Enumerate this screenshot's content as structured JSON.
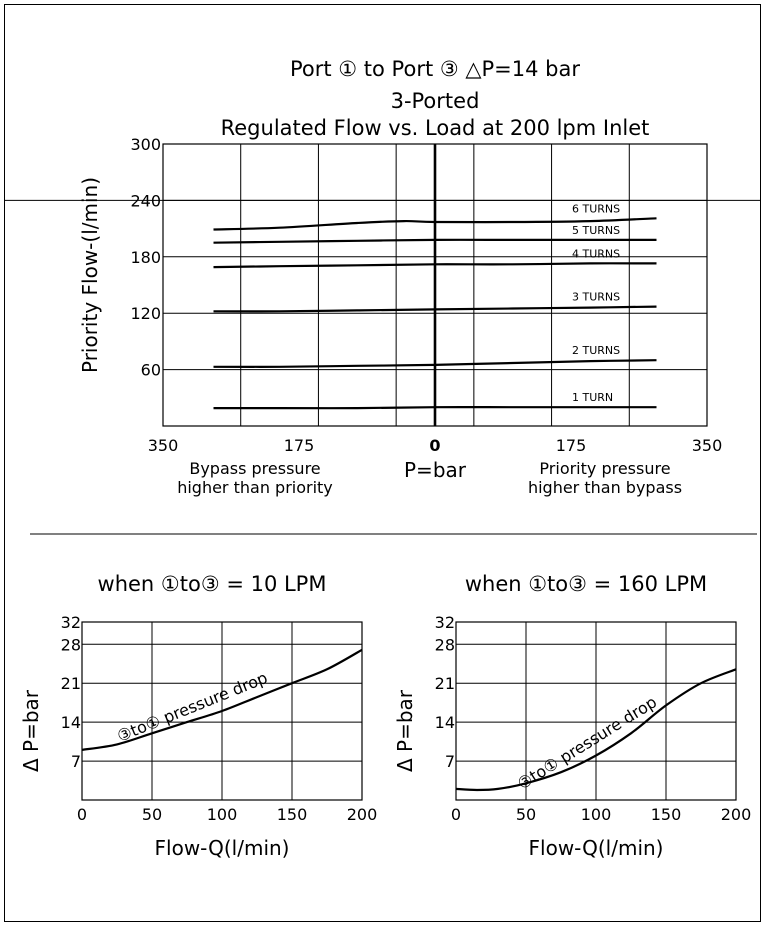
{
  "chart_data": [
    {
      "type": "line",
      "title_lines": [
        "Port ① to Port ③ △P=14 bar",
        "3-Ported",
        "Regulated Flow vs. Load at 200 lpm Inlet"
      ],
      "ylabel": "Priority Flow-(l/min)",
      "xlabel": "P=bar",
      "x_tick_labels": [
        "350",
        "175",
        "0",
        "175",
        "350"
      ],
      "y_tick_labels": [
        "60",
        "120",
        "180",
        "240",
        "300"
      ],
      "xlim": [
        -350,
        350
      ],
      "ylim": [
        0,
        300
      ],
      "left_note": [
        "Bypass pressure",
        "higher than priority"
      ],
      "right_note": [
        "Priority pressure",
        "higher than bypass"
      ],
      "series": [
        {
          "name": "1 TURN",
          "x": [
            -285,
            -200,
            -100,
            0,
            100,
            200,
            285
          ],
          "y": [
            19,
            19,
            19,
            20,
            20,
            20,
            20
          ]
        },
        {
          "name": "2 TURNS",
          "x": [
            -285,
            -200,
            -100,
            0,
            100,
            200,
            285
          ],
          "y": [
            63,
            63,
            64,
            65,
            67,
            69,
            70
          ]
        },
        {
          "name": "3 TURNS",
          "x": [
            -285,
            -200,
            -100,
            0,
            100,
            200,
            285
          ],
          "y": [
            122,
            122,
            123,
            124,
            125,
            126,
            127
          ]
        },
        {
          "name": "4 TURNS",
          "x": [
            -285,
            -200,
            -100,
            0,
            100,
            200,
            285
          ],
          "y": [
            169,
            170,
            171,
            172,
            172,
            173,
            173
          ]
        },
        {
          "name": "5 TURNS",
          "x": [
            -285,
            -200,
            -100,
            0,
            100,
            200,
            285
          ],
          "y": [
            195,
            196,
            197,
            198,
            198,
            198,
            198
          ]
        },
        {
          "name": "6 TURNS",
          "x": [
            -285,
            -200,
            -100,
            -40,
            0,
            100,
            200,
            285
          ],
          "y": [
            209,
            211,
            216,
            218,
            217,
            217,
            218,
            221
          ]
        }
      ]
    },
    {
      "type": "line",
      "title": "when ①to③ = 10 LPM",
      "xlabel": "Flow-Q(l/min)",
      "ylabel": "Δ P=bar",
      "x_tick_labels": [
        "0",
        "50",
        "100",
        "150",
        "200"
      ],
      "y_tick_labels": [
        "7",
        "14",
        "21",
        "28",
        "32"
      ],
      "xlim": [
        0,
        200
      ],
      "ylim": [
        0,
        32
      ],
      "annotation": "③to① pressure drop",
      "series": [
        {
          "name": "③to① pressure drop",
          "x": [
            0,
            25,
            50,
            75,
            100,
            125,
            150,
            175,
            200
          ],
          "y": [
            9,
            10,
            12,
            14,
            16,
            18.5,
            21,
            23.5,
            27
          ]
        }
      ]
    },
    {
      "type": "line",
      "title": "when ①to③ = 160 LPM",
      "xlabel": "Flow-Q(l/min)",
      "ylabel": "Δ P=bar",
      "x_tick_labels": [
        "0",
        "50",
        "100",
        "150",
        "200"
      ],
      "y_tick_labels": [
        "7",
        "14",
        "21",
        "28",
        "32"
      ],
      "xlim": [
        0,
        200
      ],
      "ylim": [
        0,
        32
      ],
      "annotation": "③to① pressure drop",
      "series": [
        {
          "name": "③to① pressure drop",
          "x": [
            0,
            15,
            30,
            50,
            75,
            100,
            125,
            150,
            175,
            200
          ],
          "y": [
            2,
            1.8,
            2,
            3,
            5,
            8,
            12,
            17,
            21,
            23.5
          ]
        }
      ]
    }
  ]
}
